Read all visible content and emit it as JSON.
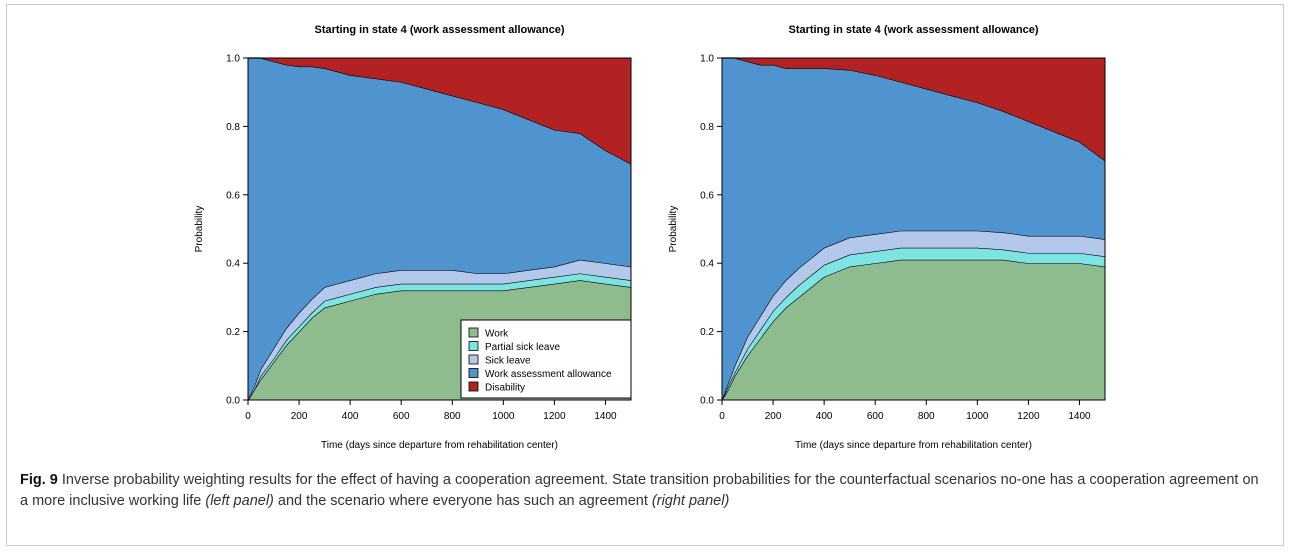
{
  "chart_data": [
    {
      "type": "area",
      "stacked": true,
      "title": "Starting in state 4 (work assessment allowance)",
      "xlabel": "Time (days since departure from rehabilitation center)",
      "ylabel": "Probability",
      "xlim": [
        0,
        1500
      ],
      "ylim": [
        0,
        1
      ],
      "xticks": [
        0,
        200,
        400,
        600,
        800,
        1000,
        1200,
        1400
      ],
      "yticks": [
        0.0,
        0.2,
        0.4,
        0.6,
        0.8,
        1.0
      ],
      "ytick_labels": [
        "0.0",
        "0.2",
        "0.4",
        "0.6",
        "0.8",
        "1.0"
      ],
      "legend": {
        "placement": "bottom-right",
        "show": true
      },
      "x": [
        0,
        25,
        50,
        100,
        150,
        200,
        250,
        300,
        350,
        400,
        500,
        600,
        700,
        800,
        900,
        1000,
        1100,
        1200,
        1300,
        1400,
        1500
      ],
      "series": [
        {
          "name": "Work",
          "color": "#8fbc8f",
          "values": [
            0.0,
            0.03,
            0.06,
            0.11,
            0.16,
            0.2,
            0.24,
            0.27,
            0.28,
            0.29,
            0.31,
            0.32,
            0.32,
            0.32,
            0.32,
            0.32,
            0.33,
            0.34,
            0.35,
            0.34,
            0.33
          ]
        },
        {
          "name": "Partial sick leave",
          "color": "#7de3e3",
          "values": [
            0.0,
            0.0,
            0.01,
            0.01,
            0.015,
            0.015,
            0.015,
            0.02,
            0.02,
            0.02,
            0.02,
            0.02,
            0.02,
            0.02,
            0.02,
            0.02,
            0.02,
            0.02,
            0.02,
            0.02,
            0.02
          ]
        },
        {
          "name": "Sick leave",
          "color": "#b3c8ea",
          "values": [
            0.0,
            0.01,
            0.02,
            0.03,
            0.035,
            0.04,
            0.04,
            0.04,
            0.04,
            0.04,
            0.04,
            0.04,
            0.04,
            0.04,
            0.03,
            0.03,
            0.03,
            0.03,
            0.04,
            0.04,
            0.04
          ]
        },
        {
          "name": "Work assessment allowance",
          "color": "#4f94cf",
          "values": [
            1.0,
            0.96,
            0.91,
            0.84,
            0.77,
            0.72,
            0.68,
            0.64,
            0.62,
            0.6,
            0.57,
            0.55,
            0.53,
            0.51,
            0.5,
            0.48,
            0.44,
            0.4,
            0.37,
            0.33,
            0.3
          ]
        },
        {
          "name": "Disability",
          "color": "#b22222",
          "values": [
            0.0,
            0.0,
            0.0,
            0.01,
            0.02,
            0.025,
            0.025,
            0.03,
            0.04,
            0.05,
            0.06,
            0.07,
            0.09,
            0.11,
            0.13,
            0.15,
            0.18,
            0.21,
            0.22,
            0.27,
            0.31
          ]
        }
      ]
    },
    {
      "type": "area",
      "stacked": true,
      "title": "Starting in state 4 (work assessment allowance)",
      "xlabel": "Time (days since departure from rehabilitation center)",
      "ylabel": "Probability",
      "xlim": [
        0,
        1500
      ],
      "ylim": [
        0,
        1
      ],
      "xticks": [
        0,
        200,
        400,
        600,
        800,
        1000,
        1200,
        1400
      ],
      "yticks": [
        0.0,
        0.2,
        0.4,
        0.6,
        0.8,
        1.0
      ],
      "ytick_labels": [
        "0.0",
        "0.2",
        "0.4",
        "0.6",
        "0.8",
        "1.0"
      ],
      "legend": {
        "show": false
      },
      "x": [
        0,
        25,
        50,
        100,
        150,
        200,
        250,
        300,
        350,
        400,
        500,
        600,
        700,
        800,
        900,
        1000,
        1100,
        1200,
        1300,
        1400,
        1500
      ],
      "series": [
        {
          "name": "Work",
          "color": "#8fbc8f",
          "values": [
            0.0,
            0.03,
            0.07,
            0.13,
            0.18,
            0.23,
            0.27,
            0.3,
            0.33,
            0.36,
            0.39,
            0.4,
            0.41,
            0.41,
            0.41,
            0.41,
            0.41,
            0.4,
            0.4,
            0.4,
            0.39
          ]
        },
        {
          "name": "Partial sick leave",
          "color": "#7de3e3",
          "values": [
            0.0,
            0.01,
            0.01,
            0.02,
            0.025,
            0.03,
            0.03,
            0.035,
            0.035,
            0.035,
            0.035,
            0.035,
            0.035,
            0.035,
            0.035,
            0.035,
            0.03,
            0.03,
            0.03,
            0.03,
            0.03
          ]
        },
        {
          "name": "Sick leave",
          "color": "#b3c8ea",
          "values": [
            0.0,
            0.01,
            0.02,
            0.035,
            0.04,
            0.045,
            0.05,
            0.05,
            0.05,
            0.05,
            0.05,
            0.05,
            0.05,
            0.05,
            0.05,
            0.05,
            0.05,
            0.05,
            0.05,
            0.05,
            0.05
          ]
        },
        {
          "name": "Work assessment allowance",
          "color": "#4f94cf",
          "values": [
            1.0,
            0.95,
            0.9,
            0.805,
            0.735,
            0.675,
            0.62,
            0.585,
            0.555,
            0.525,
            0.49,
            0.465,
            0.435,
            0.415,
            0.395,
            0.375,
            0.355,
            0.335,
            0.305,
            0.275,
            0.23
          ]
        },
        {
          "name": "Disability",
          "color": "#b22222",
          "values": [
            0.0,
            0.0,
            0.0,
            0.01,
            0.02,
            0.02,
            0.03,
            0.03,
            0.03,
            0.03,
            0.035,
            0.05,
            0.07,
            0.09,
            0.11,
            0.13,
            0.155,
            0.185,
            0.215,
            0.245,
            0.3
          ]
        }
      ]
    }
  ],
  "caption": {
    "label": "Fig. 9",
    "part1": "Inverse probability weighting results for the effect of having a cooperation agreement. State transition probabilities for the counterfactual scenarios no-one has a cooperation agreement on a more inclusive working life ",
    "left_panel": "(left panel)",
    "part2": " and the scenario where everyone has such an agreement ",
    "right_panel": "(right panel)"
  }
}
